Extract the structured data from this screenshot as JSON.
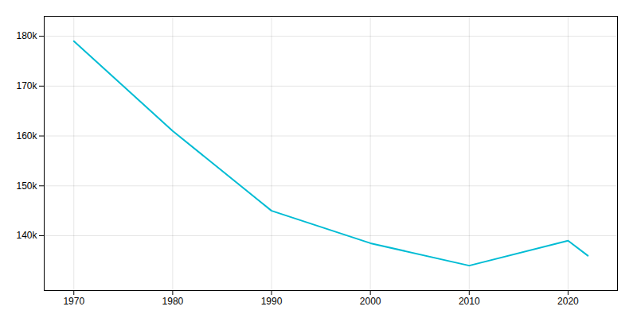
{
  "chart_data": {
    "type": "line",
    "x": [
      1970,
      1980,
      1990,
      2000,
      2010,
      2020,
      2022
    ],
    "values": [
      179000,
      161000,
      145000,
      138500,
      134000,
      139000,
      136000
    ],
    "color": "#00bcd4",
    "xlim": [
      1967,
      2025
    ],
    "ylim": [
      129000,
      184000
    ],
    "xticks": [
      1970,
      1980,
      1990,
      2000,
      2010,
      2020
    ],
    "yticks": [
      {
        "value": 140000,
        "label": "140k"
      },
      {
        "value": 150000,
        "label": "150k"
      },
      {
        "value": 160000,
        "label": "160k"
      },
      {
        "value": 170000,
        "label": "170k"
      },
      {
        "value": 180000,
        "label": "180k"
      }
    ],
    "grid": true
  }
}
